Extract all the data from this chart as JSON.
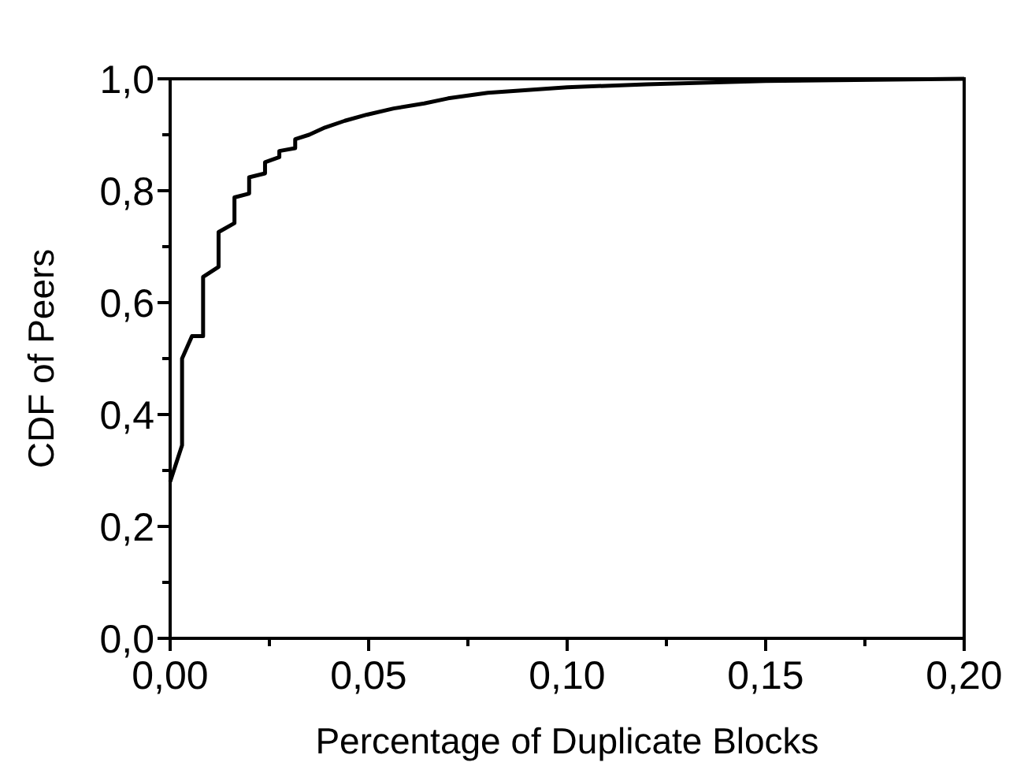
{
  "chart_data": {
    "type": "step",
    "xlabel": "Percentage of Duplicate Blocks",
    "ylabel": "CDF of Peers",
    "series": [
      {
        "color": "#000000",
        "x": [
          0,
          0.003,
          0.003,
          0.0055,
          0.0083,
          0.0083,
          0.0122,
          0.0122,
          0.0162,
          0.0162,
          0.0199,
          0.0199,
          0.0239,
          0.0239,
          0.0275,
          0.0275,
          0.0315,
          0.0315,
          0.035,
          0.039,
          0.044,
          0.0496,
          0.0563,
          0.064,
          0.07,
          0.08,
          0.09,
          0.1,
          0.12,
          0.15,
          0.2
        ],
        "values": [
          0.28,
          0.345,
          0.5,
          0.54,
          0.54,
          0.646,
          0.664,
          0.726,
          0.742,
          0.788,
          0.795,
          0.824,
          0.831,
          0.851,
          0.86,
          0.871,
          0.876,
          0.892,
          0.9,
          0.913,
          0.925,
          0.936,
          0.947,
          0.956,
          0.965,
          0.975,
          0.98,
          0.985,
          0.99,
          0.996,
          1.0
        ]
      }
    ],
    "xlim": [
      0,
      0.2
    ],
    "ylim": [
      0,
      1
    ],
    "xticks": [
      {
        "value": 0,
        "label": "0,00"
      },
      {
        "value": 0.025,
        "label": null
      },
      {
        "value": 0.05,
        "label": "0,05"
      },
      {
        "value": 0.075,
        "label": null
      },
      {
        "value": 0.1,
        "label": "0,10"
      },
      {
        "value": 0.125,
        "label": null
      },
      {
        "value": 0.15,
        "label": "0,15"
      },
      {
        "value": 0.175,
        "label": null
      },
      {
        "value": 0.2,
        "label": "0,20"
      }
    ],
    "yticks": [
      {
        "value": 0,
        "label": "0,0"
      },
      {
        "value": 0.1,
        "label": null
      },
      {
        "value": 0.2,
        "label": "0,2"
      },
      {
        "value": 0.3,
        "label": null
      },
      {
        "value": 0.4,
        "label": "0,4"
      },
      {
        "value": 0.5,
        "label": null
      },
      {
        "value": 0.6,
        "label": "0,6"
      },
      {
        "value": 0.7,
        "label": null
      },
      {
        "value": 0.8,
        "label": "0,8"
      },
      {
        "value": 0.9,
        "label": null
      },
      {
        "value": 1,
        "label": "1,0"
      }
    ],
    "grid": false
  }
}
